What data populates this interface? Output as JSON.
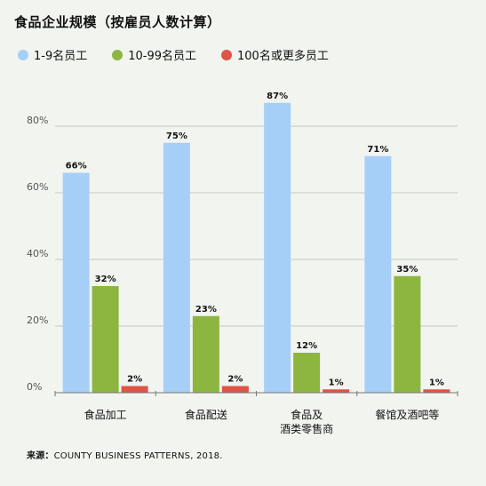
{
  "title": "食品企业规模（按雇员人数计算）",
  "source": {
    "label": "来源：",
    "text": "COUNTY BUSINESS PATTERNS, 2018."
  },
  "chart_data": {
    "type": "bar",
    "title": "食品企业规模（按雇员人数计算）",
    "xlabel": "",
    "ylabel": "",
    "ylim": [
      0,
      100
    ],
    "yticks": [
      {
        "value": 0,
        "label": "0%"
      },
      {
        "value": 20,
        "label": "20%"
      },
      {
        "value": 40,
        "label": "40%"
      },
      {
        "value": 60,
        "label": "60%"
      },
      {
        "value": 80,
        "label": "80%"
      }
    ],
    "categories": [
      [
        "食品加工"
      ],
      [
        "食品配送"
      ],
      [
        "食品及",
        "酒类零售商"
      ],
      [
        "餐馆及酒吧等"
      ]
    ],
    "series": [
      {
        "name": "1-9名员工",
        "color": "#a6cff7",
        "values": [
          66,
          75,
          87,
          71
        ],
        "labels": [
          "66%",
          "75%",
          "87%",
          "71%"
        ]
      },
      {
        "name": "10-99名员工",
        "color": "#8db640",
        "values": [
          32,
          23,
          12,
          35
        ],
        "labels": [
          "32%",
          "23%",
          "12%",
          "35%"
        ]
      },
      {
        "name": "100名或更多员工",
        "color": "#e05346",
        "values": [
          2,
          2,
          1,
          1
        ],
        "labels": [
          "2%",
          "2%",
          "1%",
          "1%"
        ]
      }
    ],
    "grid": true,
    "legend_position": "top-left"
  }
}
